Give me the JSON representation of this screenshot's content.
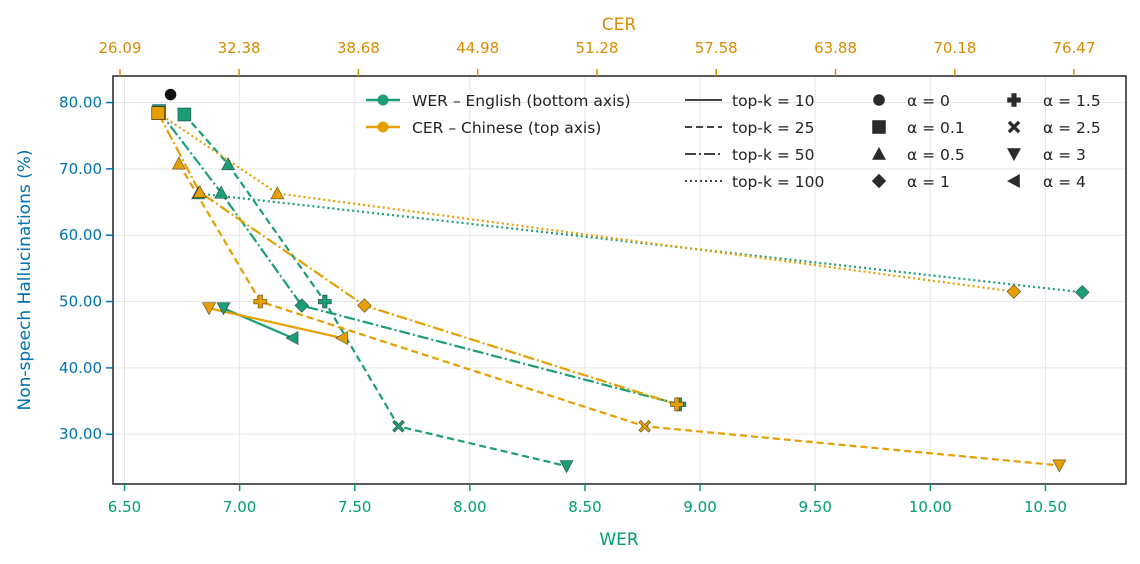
{
  "chart_data": {
    "type": "scatter",
    "title": "",
    "xlabel": "WER",
    "x2label": "CER",
    "ylabel": "Non-speech Hallucinations (%)",
    "xlim": [
      6.45,
      10.85
    ],
    "x2lim": [
      25.72,
      79.22
    ],
    "ylim": [
      22.5,
      84
    ],
    "xticks": [
      "6.50",
      "7.00",
      "7.50",
      "8.00",
      "8.50",
      "9.00",
      "9.50",
      "10.00",
      "10.50"
    ],
    "x2ticks": [
      "26.09",
      "32.38",
      "38.68",
      "44.98",
      "51.28",
      "57.58",
      "63.88",
      "70.18",
      "76.47"
    ],
    "yticks": [
      "30.00",
      "40.00",
      "50.00",
      "60.00",
      "70.00",
      "80.00"
    ],
    "grid": true,
    "colors": {
      "wer": "#1b9e77",
      "cer": "#e69f00",
      "wer_axis": "#009e73",
      "cer_axis": "#d98c00",
      "y_axis": "#0072b2",
      "black": "#111111"
    },
    "legend": {
      "placement": "top-right",
      "series": [
        "WER – English (bottom axis)",
        "CER – Chinese (top axis)"
      ],
      "topk": [
        "top-k = 10",
        "top-k = 25",
        "top-k = 50",
        "top-k = 100"
      ],
      "alpha_col1": [
        "α = 0",
        "α = 0.1",
        "α = 0.5",
        "α = 1"
      ],
      "alpha_col2": [
        "α = 1.5",
        "α = 2.5",
        "α = 3",
        "α = 4"
      ]
    },
    "series": [
      {
        "metric": "WER",
        "topk": 10,
        "points": [
          {
            "x": 6.93,
            "y": 49.0,
            "marker": "down"
          },
          {
            "x": 7.23,
            "y": 44.5,
            "marker": "left"
          }
        ]
      },
      {
        "metric": "WER",
        "topk": 25,
        "points": [
          {
            "x": 6.76,
            "y": 78.2,
            "marker": "square"
          },
          {
            "x": 6.95,
            "y": 70.7,
            "marker": "up"
          },
          {
            "x": 7.37,
            "y": 50.0,
            "marker": "plus"
          },
          {
            "x": 7.69,
            "y": 31.2,
            "marker": "x"
          },
          {
            "x": 8.42,
            "y": 25.2,
            "marker": "down"
          }
        ]
      },
      {
        "metric": "WER",
        "topk": 50,
        "points": [
          {
            "x": 6.65,
            "y": 78.7,
            "marker": "square"
          },
          {
            "x": 6.92,
            "y": 66.4,
            "marker": "up"
          },
          {
            "x": 7.27,
            "y": 49.4,
            "marker": "diamond"
          },
          {
            "x": 8.91,
            "y": 34.5,
            "marker": "plus"
          }
        ]
      },
      {
        "metric": "WER",
        "topk": 100,
        "points": [
          {
            "x": 6.82,
            "y": 66.3,
            "marker": "up"
          },
          {
            "x": 10.66,
            "y": 51.4,
            "marker": "diamond"
          }
        ]
      },
      {
        "metric": "CER",
        "topk": 10,
        "points": [
          {
            "x2": 30.79,
            "y": 49.0,
            "marker": "down"
          },
          {
            "x2": 37.82,
            "y": 44.5,
            "marker": "left"
          }
        ]
      },
      {
        "metric": "CER",
        "topk": 25,
        "points": [
          {
            "x2": 29.2,
            "y": 70.8,
            "marker": "up"
          },
          {
            "x2": 33.5,
            "y": 50.0,
            "marker": "plus"
          },
          {
            "x2": 53.8,
            "y": 31.2,
            "marker": "x"
          },
          {
            "x2": 75.7,
            "y": 25.3,
            "marker": "down"
          }
        ]
      },
      {
        "metric": "CER",
        "topk": 50,
        "points": [
          {
            "x2": 28.11,
            "y": 78.4,
            "marker": "square"
          },
          {
            "x2": 30.3,
            "y": 66.5,
            "marker": "up"
          },
          {
            "x2": 39.0,
            "y": 49.4,
            "marker": "diamond"
          },
          {
            "x2": 55.5,
            "y": 34.5,
            "marker": "plus"
          }
        ]
      },
      {
        "metric": "CER",
        "topk": 100,
        "points": [
          {
            "x2": 28.11,
            "y": 78.4,
            "marker": "square"
          },
          {
            "x2": 34.4,
            "y": 66.3,
            "marker": "up"
          },
          {
            "x2": 73.3,
            "y": 51.5,
            "marker": "diamond"
          }
        ]
      }
    ],
    "extra_points": [
      {
        "x": 6.7,
        "y": 81.2,
        "marker": "circle",
        "color": "black"
      }
    ]
  }
}
